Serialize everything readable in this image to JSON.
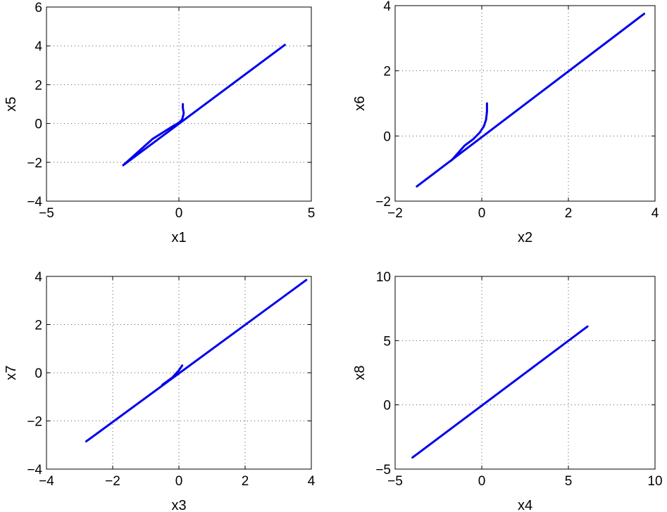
{
  "chart_data": [
    {
      "type": "line",
      "xlabel": "x1",
      "ylabel": "x5",
      "xlim": [
        -5,
        5
      ],
      "ylim": [
        -4,
        6
      ],
      "xticks": [
        -5,
        0,
        5
      ],
      "yticks": [
        -4,
        -2,
        0,
        2,
        4,
        6
      ],
      "xtick_labels": [
        "−5",
        "0",
        "5"
      ],
      "ytick_labels": [
        "−4",
        "−2",
        "0",
        "2",
        "4",
        "6"
      ],
      "grid": true,
      "color": "#0000ee",
      "series": [
        {
          "x": [
            0.15,
            0.15,
            0.18,
            0.17,
            0.12,
            0.05,
            -0.05,
            -0.3,
            -1.0,
            -2.1
          ],
          "y": [
            1.0,
            0.8,
            0.55,
            0.45,
            0.2,
            0.1,
            0.0,
            -0.2,
            -0.8,
            -2.15
          ]
        },
        {
          "x": [
            -2.1,
            4.0
          ],
          "y": [
            -2.15,
            4.05
          ]
        }
      ]
    },
    {
      "type": "line",
      "xlabel": "x2",
      "ylabel": "x6",
      "xlim": [
        -2,
        4
      ],
      "ylim": [
        -2,
        4
      ],
      "xticks": [
        -2,
        0,
        2,
        4
      ],
      "yticks": [
        -2,
        0,
        2,
        4
      ],
      "xtick_labels": [
        "−2",
        "0",
        "2",
        "4"
      ],
      "ytick_labels": [
        "−2",
        "0",
        "2",
        "4"
      ],
      "grid": true,
      "color": "#0000ee",
      "series": [
        {
          "x": [
            0.12,
            0.12,
            0.1,
            0.05,
            -0.05,
            -0.2,
            -0.4,
            -0.7
          ],
          "y": [
            1.0,
            0.75,
            0.5,
            0.3,
            0.1,
            -0.1,
            -0.3,
            -0.75
          ]
        },
        {
          "x": [
            -1.5,
            3.75
          ],
          "y": [
            -1.55,
            3.75
          ]
        }
      ]
    },
    {
      "type": "line",
      "xlabel": "x3",
      "ylabel": "x7",
      "xlim": [
        -4,
        4
      ],
      "ylim": [
        -4,
        4
      ],
      "xticks": [
        -4,
        -2,
        0,
        2,
        4
      ],
      "yticks": [
        -4,
        -2,
        0,
        2,
        4
      ],
      "xtick_labels": [
        "−4",
        "−2",
        "0",
        "2",
        "4"
      ],
      "ytick_labels": [
        "−4",
        "−2",
        "0",
        "2",
        "4"
      ],
      "grid": true,
      "color": "#0000ee",
      "series": [
        {
          "x": [
            0.1,
            0.0,
            -0.2,
            -0.5
          ],
          "y": [
            0.3,
            0.1,
            -0.2,
            -0.5
          ]
        },
        {
          "x": [
            -2.8,
            3.85
          ],
          "y": [
            -2.85,
            3.85
          ]
        }
      ]
    },
    {
      "type": "line",
      "xlabel": "x4",
      "ylabel": "x8",
      "xlim": [
        -5,
        10
      ],
      "ylim": [
        -5,
        10
      ],
      "xticks": [
        -5,
        0,
        5,
        10
      ],
      "yticks": [
        -5,
        0,
        5,
        10
      ],
      "xtick_labels": [
        "−5",
        "0",
        "5",
        "10"
      ],
      "ytick_labels": [
        "−5",
        "0",
        "5",
        "10"
      ],
      "grid": true,
      "color": "#0000ee",
      "series": [
        {
          "x": [
            -4.0,
            6.1
          ],
          "y": [
            -4.1,
            6.1
          ]
        }
      ]
    }
  ]
}
